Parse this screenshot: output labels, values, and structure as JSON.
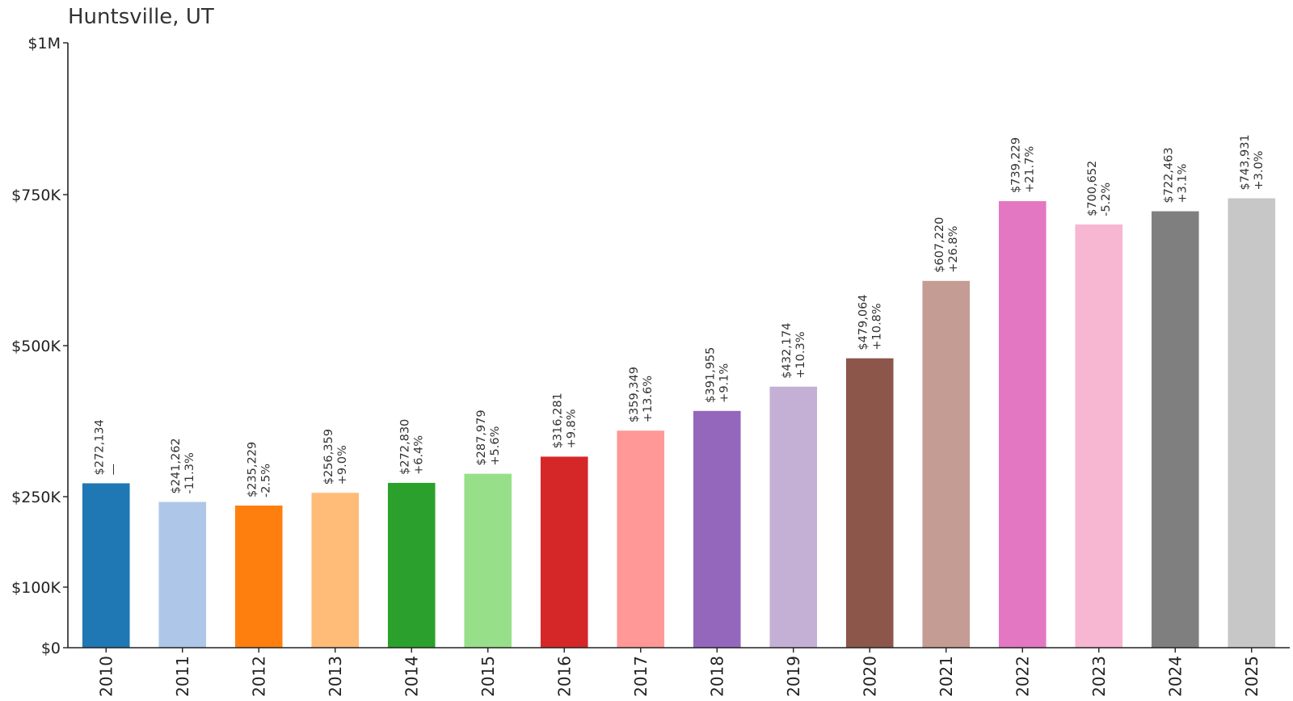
{
  "chart_data": {
    "type": "bar",
    "title": "Huntsville, UT",
    "xlabel": "",
    "ylabel": "",
    "categories": [
      "2010",
      "2011",
      "2012",
      "2013",
      "2014",
      "2015",
      "2016",
      "2017",
      "2018",
      "2019",
      "2020",
      "2021",
      "2022",
      "2023",
      "2024",
      "2025"
    ],
    "values": [
      272134,
      241262,
      235229,
      256359,
      272830,
      287979,
      316281,
      359349,
      391955,
      432174,
      479064,
      607220,
      739229,
      700652,
      722463,
      743931
    ],
    "value_labels": [
      "$272,134",
      "$241,262",
      "$235,229",
      "$256,359",
      "$272,830",
      "$287,979",
      "$316,281",
      "$359,349",
      "$391,955",
      "$432,174",
      "$479,064",
      "$607,220",
      "$739,229",
      "$700,652",
      "$722,463",
      "$743,931"
    ],
    "change_labels": [
      "—",
      "-11.3%",
      "-2.5%",
      "+9.0%",
      "+6.4%",
      "+5.6%",
      "+9.8%",
      "+13.6%",
      "+9.1%",
      "+10.3%",
      "+10.8%",
      "+26.8%",
      "+21.7%",
      "-5.2%",
      "+3.1%",
      "+3.0%"
    ],
    "bar_colors": [
      "#1f77b4",
      "#aec7e8",
      "#ff7f0e",
      "#ffbb78",
      "#2ca02c",
      "#98df8a",
      "#d62728",
      "#ff9896",
      "#9467bd",
      "#c5b0d5",
      "#8c564b",
      "#c49c94",
      "#e377c2",
      "#f7b6d2",
      "#7f7f7f",
      "#c7c7c7"
    ],
    "ylim": [
      0,
      1000000
    ],
    "yticks": [
      {
        "value": 0,
        "label": "$0"
      },
      {
        "value": 100000,
        "label": "$100K"
      },
      {
        "value": 250000,
        "label": "$250K"
      },
      {
        "value": 500000,
        "label": "$500K"
      },
      {
        "value": 750000,
        "label": "$750K"
      },
      {
        "value": 1000000,
        "label": "$1M"
      }
    ],
    "grid": false,
    "legend": "none"
  }
}
